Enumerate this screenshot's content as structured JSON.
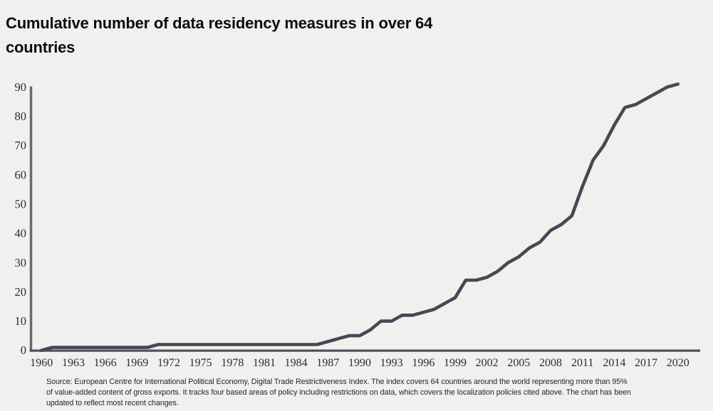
{
  "title": "Cumulative number of data residency measures in over 64\ncountries",
  "source_note": "Source: European Centre for International Political Economy, Digital Trade Restrictiveness Index. The index covers 64 countries around the world representing more than 95%\nof value-added content of gross exports. It tracks four based areas of policy including restrictions on data, which covers the localization policies cited above. The chart has been\nupdated to reflect most recent changes.",
  "colors": {
    "background": "#f1f0ef",
    "line": "#4b4554",
    "axis_vertical": "#6a676d",
    "axis_horizontal": "#54505c",
    "tick_text": "#2d2b2b",
    "title_text": "#0c0c0c"
  },
  "chart_data": {
    "type": "line",
    "title": "Cumulative number of data residency measures in over 64 countries",
    "xlabel": "",
    "ylabel": "",
    "grid": false,
    "legend_position": "none",
    "xlim": [
      1960,
      2020
    ],
    "ylim": [
      0,
      91
    ],
    "x_tick_labels": [
      "1960",
      "1963",
      "1966",
      "1969",
      "1972",
      "1975",
      "1978",
      "1981",
      "1984",
      "1987",
      "1990",
      "1993",
      "1996",
      "1999",
      "2002",
      "2005",
      "2008",
      "2011",
      "2014",
      "2017",
      "2020"
    ],
    "y_tick_labels": [
      "0",
      "10",
      "20",
      "30",
      "40",
      "50",
      "60",
      "70",
      "80",
      "90"
    ],
    "x": [
      1960,
      1961,
      1962,
      1963,
      1964,
      1965,
      1966,
      1967,
      1968,
      1969,
      1970,
      1971,
      1972,
      1973,
      1974,
      1975,
      1976,
      1977,
      1978,
      1979,
      1980,
      1981,
      1982,
      1983,
      1984,
      1985,
      1986,
      1987,
      1988,
      1989,
      1990,
      1991,
      1992,
      1993,
      1994,
      1995,
      1996,
      1997,
      1998,
      1999,
      2000,
      2001,
      2002,
      2003,
      2004,
      2005,
      2006,
      2007,
      2008,
      2009,
      2010,
      2011,
      2012,
      2013,
      2014,
      2015,
      2016,
      2017,
      2018,
      2019,
      2020
    ],
    "values": [
      0,
      1,
      1,
      1,
      1,
      1,
      1,
      1,
      1,
      1,
      1,
      2,
      2,
      2,
      2,
      2,
      2,
      2,
      2,
      2,
      2,
      2,
      2,
      2,
      2,
      2,
      2,
      3,
      4,
      5,
      5,
      7,
      10,
      10,
      12,
      12,
      13,
      14,
      16,
      18,
      24,
      24,
      25,
      27,
      30,
      32,
      35,
      37,
      41,
      43,
      46,
      56,
      65,
      70,
      77,
      83,
      84,
      86,
      88,
      90,
      91
    ]
  }
}
